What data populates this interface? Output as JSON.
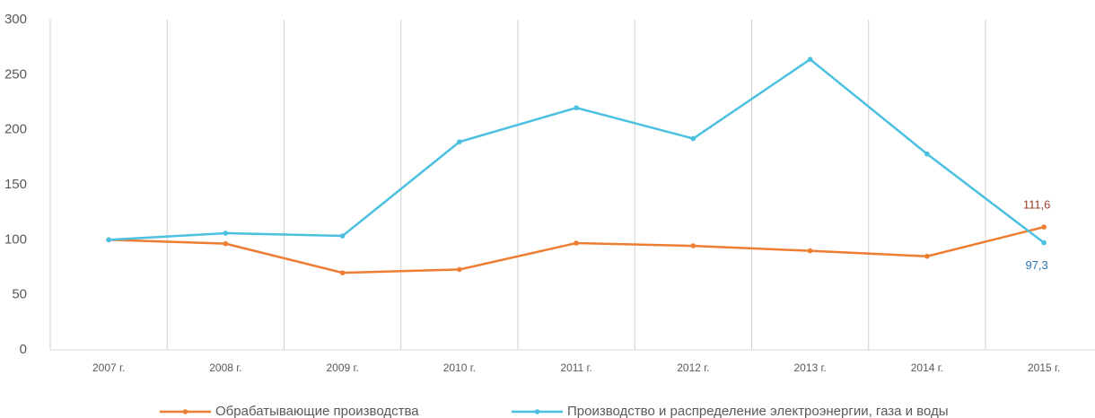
{
  "chart_data": {
    "type": "line",
    "categories": [
      "2007 г.",
      "2008 г.",
      "2009 г.",
      "2010 г.",
      "2011 г.",
      "2012 г.",
      "2013 г.",
      "2014 г.",
      "2015 г."
    ],
    "series": [
      {
        "name": "Обрабатывающие производства",
        "color": "#ed7d31",
        "label_color": "#9e3b2a",
        "values": [
          100,
          96.5,
          70,
          73,
          97,
          94.5,
          90,
          85,
          111.6
        ],
        "value_labels": [
          null,
          null,
          null,
          null,
          null,
          null,
          null,
          null,
          "111,6"
        ]
      },
      {
        "name": "Производство и распределение электроэнергии, газа и воды",
        "color": "#4bc0e0",
        "label_color": "#2e75b6",
        "values": [
          100,
          106,
          103.5,
          189,
          220,
          192,
          264,
          178,
          97.3
        ],
        "value_labels": [
          null,
          null,
          null,
          null,
          null,
          null,
          null,
          null,
          "97,3"
        ]
      }
    ],
    "ylim": [
      0,
      300
    ],
    "yticks": [
      0,
      50,
      100,
      150,
      200,
      250,
      300
    ],
    "grid": true,
    "legend": "bottom"
  }
}
